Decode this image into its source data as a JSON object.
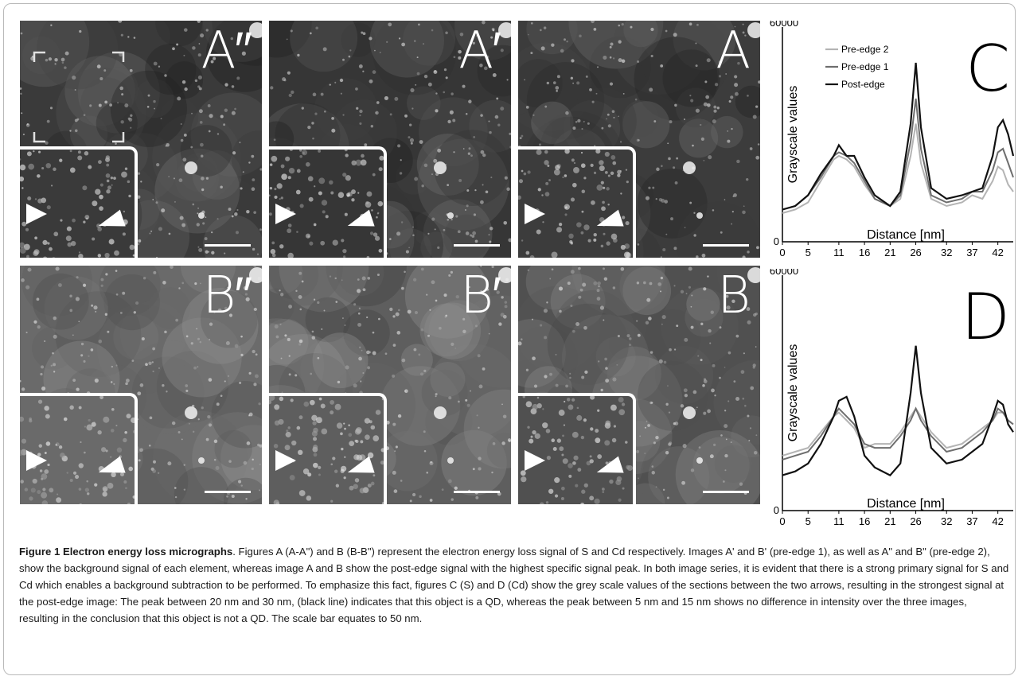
{
  "panels": [
    {
      "id": "A2",
      "label": "A″",
      "row": 0,
      "col": 0,
      "bg": "#3a3a3a"
    },
    {
      "id": "A1",
      "label": "A′",
      "row": 0,
      "col": 1,
      "bg": "#363636"
    },
    {
      "id": "A0",
      "label": "A",
      "row": 0,
      "col": 2,
      "bg": "#3c3c3c"
    },
    {
      "id": "B2",
      "label": "B″",
      "row": 1,
      "col": 0,
      "bg": "#6a6a6a"
    },
    {
      "id": "B1",
      "label": "B′",
      "row": 1,
      "col": 1,
      "bg": "#5e5e5e"
    },
    {
      "id": "B0",
      "label": "B",
      "row": 1,
      "col": 2,
      "bg": "#505050"
    }
  ],
  "colors": {
    "post_edge": "#111111",
    "pre_edge_1": "#6e6e6e",
    "pre_edge_2": "#b4b4b4"
  },
  "chart_data": [
    {
      "type": "line",
      "title": "C",
      "xlabel": "Distance [nm]",
      "ylabel": "Grayscale values",
      "x_ticks": [
        "0",
        "5",
        "11",
        "16",
        "21",
        "26",
        "32",
        "37",
        "42"
      ],
      "y_ticks": [
        "0",
        "60000"
      ],
      "ylim": [
        0,
        60000
      ],
      "xlim": [
        0,
        45
      ],
      "legend": "top-left",
      "x": [
        0,
        2.5,
        5,
        7.5,
        10,
        11,
        12.5,
        14,
        16,
        18,
        21,
        23,
        25,
        26,
        27,
        29,
        32,
        35,
        37,
        39,
        41,
        42,
        43,
        44,
        45
      ],
      "series": [
        {
          "name": "Pre-edge 2",
          "values": [
            8000,
            9000,
            11000,
            17000,
            23000,
            24000,
            23000,
            21000,
            16000,
            12000,
            10000,
            12000,
            24000,
            33000,
            22000,
            12000,
            10000,
            11000,
            13000,
            12000,
            17000,
            21000,
            20000,
            16000,
            14000
          ]
        },
        {
          "name": "Pre-edge 1",
          "values": [
            9000,
            10000,
            13000,
            18000,
            24000,
            25000,
            24000,
            22000,
            17000,
            12000,
            10000,
            13000,
            28000,
            40000,
            26000,
            13000,
            11000,
            12000,
            14000,
            14000,
            20000,
            25000,
            26000,
            22000,
            18000
          ]
        },
        {
          "name": "Post-edge",
          "values": [
            9000,
            10000,
            13000,
            19000,
            24000,
            27000,
            24000,
            24000,
            18000,
            13000,
            10000,
            14000,
            33000,
            50000,
            32000,
            15000,
            12000,
            13000,
            14000,
            15000,
            24000,
            32000,
            34000,
            30000,
            24000
          ]
        }
      ]
    },
    {
      "type": "line",
      "title": "D",
      "xlabel": "Distance [nm]",
      "ylabel": "Grayscale values",
      "x_ticks": [
        "0",
        "5",
        "11",
        "16",
        "21",
        "26",
        "32",
        "37",
        "42"
      ],
      "y_ticks": [
        "0",
        "60000"
      ],
      "ylim": [
        0,
        60000
      ],
      "xlim": [
        0,
        45
      ],
      "x": [
        0,
        2.5,
        5,
        7.5,
        10,
        11,
        12.5,
        14,
        16,
        18,
        21,
        23,
        25,
        26,
        27,
        29,
        32,
        35,
        37,
        39,
        41,
        42,
        43,
        44,
        45
      ],
      "series": [
        {
          "name": "Pre-edge 2",
          "values": [
            14000,
            15000,
            16000,
            20000,
            24000,
            25000,
            23000,
            21000,
            16000,
            17000,
            17000,
            20000,
            24000,
            26000,
            24000,
            20000,
            16000,
            17000,
            19000,
            21000,
            23000,
            25000,
            25000,
            23000,
            22000
          ]
        },
        {
          "name": "Pre-edge 1",
          "values": [
            13000,
            14000,
            15000,
            19000,
            24000,
            26000,
            24000,
            22000,
            17000,
            16000,
            16000,
            19000,
            23000,
            26000,
            23000,
            19000,
            15000,
            16000,
            18000,
            20000,
            23000,
            26000,
            25000,
            23000,
            22000
          ]
        },
        {
          "name": "Post-edge",
          "values": [
            9000,
            10000,
            12000,
            17000,
            24000,
            28000,
            29000,
            24000,
            14000,
            11000,
            9000,
            12000,
            30000,
            42000,
            30000,
            16000,
            12000,
            13000,
            15000,
            17000,
            24000,
            28000,
            27000,
            22000,
            20000
          ]
        }
      ]
    }
  ],
  "caption": {
    "bold": "Figure 1 Electron energy loss micrographs",
    "text": ". Figures A (A-A\") and B (B-B\") represent the electron energy loss signal of S and Cd respectively. Images A' and B' (pre-edge 1), as well as A\" and B\" (pre-edge 2), show the background signal of each element, whereas image A and B show the post-edge signal with the highest specific signal peak. In both image series, it is evident that there is a strong primary signal for S and Cd which enables a background subtraction to be performed. To emphasize this fact, figures C (S) and D (Cd) show the grey scale values of the sections between the two arrows, resulting in the strongest signal at the post-edge image: The peak between 20 nm and 30 nm, (black line) indicates that this object is a QD, whereas the peak between 5 nm and 15 nm shows no difference in intensity over the three images, resulting in the conclusion that this object is not a QD. The scale bar equates to 50 nm."
  }
}
